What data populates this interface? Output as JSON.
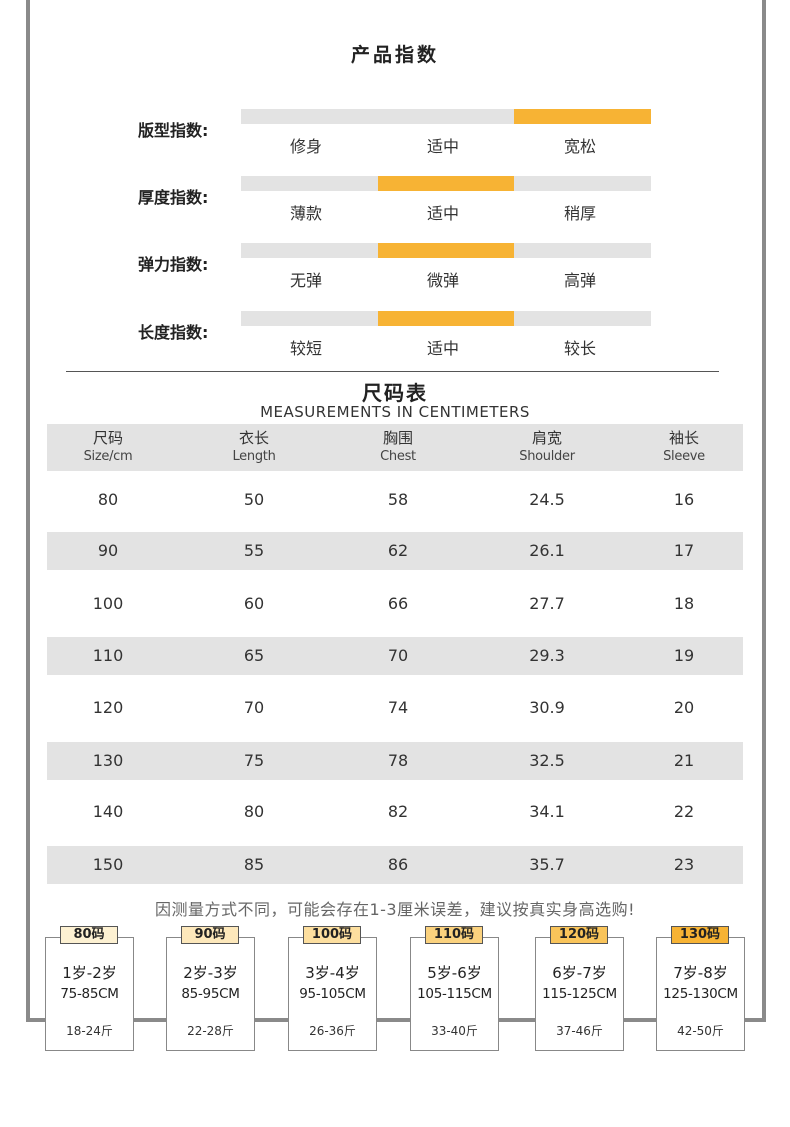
{
  "colors": {
    "accent": "#f7b334",
    "bar_bg": "#e3e3e3",
    "frame": "#8a8a8a"
  },
  "title": "产品指数",
  "indices": [
    {
      "label": "版型指数:",
      "options": [
        "修身",
        "适中",
        "宽松"
      ],
      "active": 2
    },
    {
      "label": "厚度指数:",
      "options": [
        "薄款",
        "适中",
        "稍厚"
      ],
      "active": 1
    },
    {
      "label": "弹力指数:",
      "options": [
        "无弹",
        "微弹",
        "高弹"
      ],
      "active": 1
    },
    {
      "label": "长度指数:",
      "options": [
        "较短",
        "适中",
        "较长"
      ],
      "active": 1
    }
  ],
  "size_table": {
    "title": "尺码表",
    "subtitle": "MEASUREMENTS IN CENTIMETERS",
    "headers": [
      {
        "cn": "尺码",
        "en": "Size/cm"
      },
      {
        "cn": "衣长",
        "en": "Length"
      },
      {
        "cn": "胸围",
        "en": "Chest"
      },
      {
        "cn": "肩宽",
        "en": "Shoulder"
      },
      {
        "cn": "袖长",
        "en": "Sleeve"
      }
    ],
    "rows": [
      [
        "80",
        "50",
        "58",
        "24.5",
        "16"
      ],
      [
        "90",
        "55",
        "62",
        "26.1",
        "17"
      ],
      [
        "100",
        "60",
        "66",
        "27.7",
        "18"
      ],
      [
        "110",
        "65",
        "70",
        "29.3",
        "19"
      ],
      [
        "120",
        "70",
        "74",
        "30.9",
        "20"
      ],
      [
        "130",
        "75",
        "78",
        "32.5",
        "21"
      ],
      [
        "140",
        "80",
        "82",
        "34.1",
        "22"
      ],
      [
        "150",
        "85",
        "86",
        "35.7",
        "23"
      ]
    ]
  },
  "note": "因测量方式不同，可能会存在1-3厘米误差，建议按真实身高选购!",
  "size_cards": [
    {
      "size": "80码",
      "age": "1岁-2岁",
      "height": "75-85CM",
      "weight": "18-24斤",
      "tag_color": "#fdf1d2"
    },
    {
      "size": "90码",
      "age": "2岁-3岁",
      "height": "85-95CM",
      "weight": "22-28斤",
      "tag_color": "#fde8bb"
    },
    {
      "size": "100码",
      "age": "3岁-4岁",
      "height": "95-105CM",
      "weight": "26-36斤",
      "tag_color": "#fddf9f"
    },
    {
      "size": "110码",
      "age": "5岁-6岁",
      "height": "105-115CM",
      "weight": "33-40斤",
      "tag_color": "#fbd27e"
    },
    {
      "size": "120码",
      "age": "6岁-7岁",
      "height": "115-125CM",
      "weight": "37-46斤",
      "tag_color": "#f9c45a"
    },
    {
      "size": "130码",
      "age": "7岁-8岁",
      "height": "125-130CM",
      "weight": "42-50斤",
      "tag_color": "#f7b334"
    }
  ]
}
